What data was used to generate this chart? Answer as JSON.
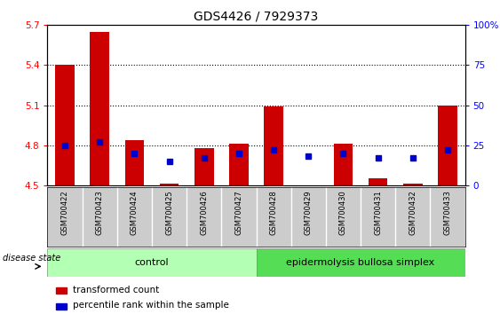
{
  "title": "GDS4426 / 7929373",
  "samples": [
    "GSM700422",
    "GSM700423",
    "GSM700424",
    "GSM700425",
    "GSM700426",
    "GSM700427",
    "GSM700428",
    "GSM700429",
    "GSM700430",
    "GSM700431",
    "GSM700432",
    "GSM700433"
  ],
  "red_values": [
    5.4,
    5.65,
    4.84,
    4.51,
    4.78,
    4.81,
    5.09,
    4.5,
    4.81,
    4.55,
    4.51,
    5.1
  ],
  "blue_values_pct": [
    25,
    27,
    20,
    15,
    17,
    20,
    22,
    18,
    20,
    17,
    17,
    22
  ],
  "ylim_left": [
    4.5,
    5.7
  ],
  "ylim_right": [
    0,
    100
  ],
  "yticks_left": [
    4.5,
    4.8,
    5.1,
    5.4,
    5.7
  ],
  "yticks_right": [
    0,
    25,
    50,
    75,
    100
  ],
  "ytick_labels_left": [
    "4.5",
    "4.8",
    "5.1",
    "5.4",
    "5.7"
  ],
  "ytick_labels_right": [
    "0",
    "25",
    "50",
    "75",
    "100%"
  ],
  "hlines": [
    4.8,
    5.1,
    5.4
  ],
  "bar_bottom": 4.5,
  "bar_width": 0.55,
  "red_color": "#cc0000",
  "blue_color": "#0000cc",
  "control_samples": 6,
  "control_label": "control",
  "disease_label": "epidermolysis bullosa simplex",
  "disease_state_label": "disease state",
  "legend_red": "transformed count",
  "legend_blue": "percentile rank within the sample",
  "control_bg": "#b3ffb3",
  "disease_bg": "#55dd55",
  "xticklabel_bg": "#cccccc",
  "title_fontsize": 10,
  "tick_fontsize": 7.5,
  "label_fontsize": 8
}
